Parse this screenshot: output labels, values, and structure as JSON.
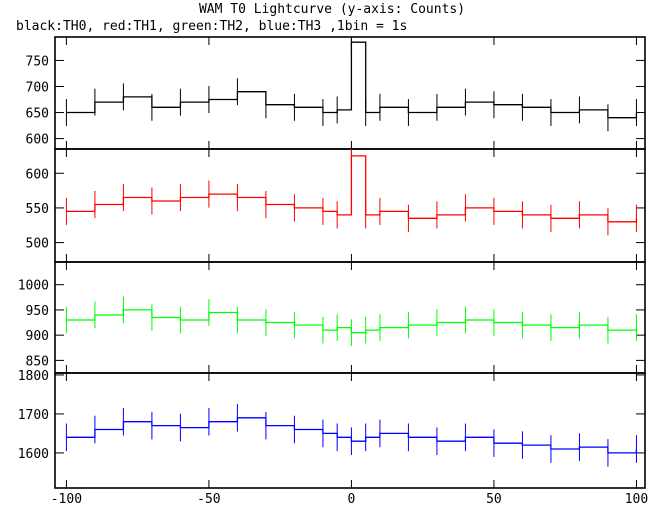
{
  "chart_data": {
    "type": "line",
    "title": "WAM T0 Lightcurve (y-axis: Counts)",
    "subtitle": "black:TH0, red:TH1, green:TH2, blue:TH3 ,1bin = 1s",
    "xlabel": "",
    "ylabel": "",
    "xlim": [
      -104,
      103
    ],
    "x_ticks": [
      -100,
      -50,
      0,
      50,
      100
    ],
    "x_tick_labels": [
      "-100",
      "-50",
      "0",
      "50",
      "100"
    ],
    "grid": false,
    "legend": "none",
    "panels": [
      {
        "series_name": "TH0",
        "color": "#000000",
        "ylim": [
          580,
          795
        ],
        "y_ticks": [
          600,
          650,
          700,
          750
        ],
        "y_tick_labels": [
          "600",
          "650",
          "700",
          "750"
        ],
        "x": [
          -100,
          -90,
          -80,
          -70,
          -60,
          -50,
          -40,
          -30,
          -20,
          -10,
          -5,
          0,
          5,
          10,
          20,
          30,
          40,
          50,
          60,
          70,
          80,
          90,
          100
        ],
        "y": [
          650,
          670,
          680,
          660,
          670,
          675,
          690,
          665,
          660,
          650,
          655,
          785,
          650,
          660,
          650,
          660,
          670,
          665,
          660,
          650,
          655,
          640,
          650
        ]
      },
      {
        "series_name": "TH1",
        "color": "#ff0000",
        "ylim": [
          472,
          635
        ],
        "y_ticks": [
          500,
          550,
          600
        ],
        "y_tick_labels": [
          "500",
          "550",
          "600"
        ],
        "x": [
          -100,
          -90,
          -80,
          -70,
          -60,
          -50,
          -40,
          -30,
          -20,
          -10,
          -5,
          0,
          5,
          10,
          20,
          30,
          40,
          50,
          60,
          70,
          80,
          90,
          100
        ],
        "y": [
          545,
          555,
          565,
          560,
          565,
          570,
          565,
          555,
          550,
          545,
          540,
          625,
          540,
          545,
          535,
          540,
          550,
          545,
          540,
          535,
          540,
          530,
          535
        ]
      },
      {
        "series_name": "TH2",
        "color": "#00ff00",
        "ylim": [
          825,
          1045
        ],
        "y_ticks": [
          850,
          900,
          950,
          1000
        ],
        "y_tick_labels": [
          "850",
          "900",
          "950",
          "1000"
        ],
        "x": [
          -100,
          -90,
          -80,
          -70,
          -60,
          -50,
          -40,
          -30,
          -20,
          -10,
          -5,
          0,
          5,
          10,
          20,
          30,
          40,
          50,
          60,
          70,
          80,
          90,
          100
        ],
        "y": [
          930,
          940,
          950,
          935,
          930,
          945,
          930,
          925,
          920,
          910,
          915,
          905,
          910,
          915,
          920,
          925,
          930,
          925,
          920,
          915,
          920,
          910,
          915
        ]
      },
      {
        "series_name": "TH3",
        "color": "#0000ff",
        "ylim": [
          1510,
          1805
        ],
        "y_ticks": [
          1600,
          1700,
          1800
        ],
        "y_tick_labels": [
          "1600",
          "1700",
          "1800"
        ],
        "x": [
          -100,
          -90,
          -80,
          -70,
          -60,
          -50,
          -40,
          -30,
          -20,
          -10,
          -5,
          0,
          5,
          10,
          20,
          30,
          40,
          50,
          60,
          70,
          80,
          90,
          100
        ],
        "y": [
          1640,
          1660,
          1680,
          1670,
          1665,
          1680,
          1690,
          1670,
          1660,
          1650,
          1640,
          1630,
          1640,
          1650,
          1640,
          1630,
          1640,
          1625,
          1620,
          1610,
          1615,
          1600,
          1610
        ]
      }
    ]
  }
}
